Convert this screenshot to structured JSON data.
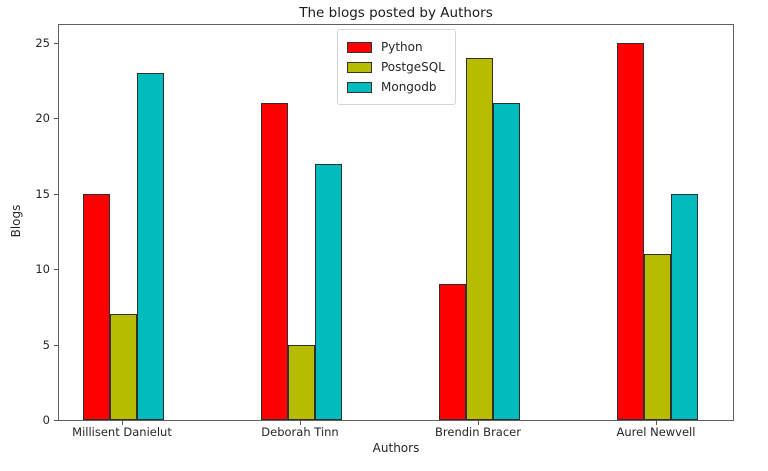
{
  "chart_data": {
    "type": "bar",
    "title": "The blogs posted by Authors",
    "xlabel": "Authors",
    "ylabel": "Blogs",
    "categories": [
      "Millisent Danielut",
      "Deborah Tinn",
      "Brendin Bracer",
      "Aurel Newvell"
    ],
    "series": [
      {
        "name": "Python",
        "color": "#ff0000",
        "values": [
          15,
          21,
          9,
          25
        ]
      },
      {
        "name": "PostgeSQL",
        "color": "#b7bc00",
        "values": [
          7,
          5,
          24,
          11
        ]
      },
      {
        "name": "Mongodb",
        "color": "#00bcbc",
        "values": [
          23,
          17,
          21,
          15
        ]
      }
    ],
    "yticks": [
      0,
      5,
      10,
      15,
      20,
      25
    ],
    "ylim": [
      0,
      26.2
    ],
    "grid": false,
    "legend_position": "upper center",
    "bar_edge_color": "#2f2f2f"
  }
}
